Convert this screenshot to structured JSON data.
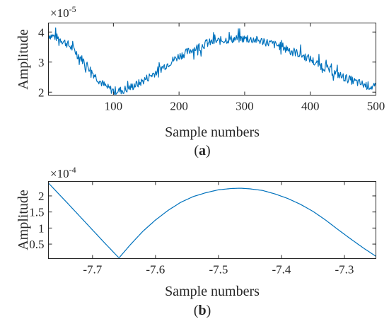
{
  "chart_data": [
    {
      "type": "line",
      "panel_label": "a",
      "xlabel": "Sample numbers",
      "ylabel": "Amplitude",
      "exponent_base": "×10",
      "exponent_power": "-5",
      "xlim": [
        1,
        500
      ],
      "ylim": [
        1.9,
        4.3
      ],
      "xticks": [
        100,
        200,
        300,
        400,
        500
      ],
      "xtick_labels": [
        "100",
        "200",
        "300",
        "400",
        "500"
      ],
      "yticks": [
        2,
        3,
        4
      ],
      "ytick_labels": [
        "2",
        "3",
        "4"
      ],
      "grid": false,
      "color": "#0072BD",
      "series": [
        {
          "x": [
            1,
            10,
            20,
            30,
            40,
            50,
            60,
            70,
            80,
            90,
            100,
            110,
            120,
            130,
            140,
            150,
            160,
            170,
            180,
            190,
            200,
            210,
            220,
            230,
            240,
            250,
            260,
            270,
            280,
            290,
            300,
            310,
            320,
            330,
            340,
            350,
            360,
            370,
            380,
            390,
            400,
            410,
            420,
            430,
            440,
            450,
            460,
            470,
            480,
            490,
            500
          ],
          "values": [
            3.9,
            3.85,
            3.75,
            3.6,
            3.4,
            3.15,
            2.9,
            2.6,
            2.35,
            2.15,
            2.05,
            2.05,
            2.1,
            2.2,
            2.3,
            2.45,
            2.6,
            2.75,
            2.9,
            3.05,
            3.2,
            3.3,
            3.42,
            3.5,
            3.6,
            3.66,
            3.7,
            3.74,
            3.76,
            3.77,
            3.78,
            3.75,
            3.72,
            3.68,
            3.62,
            3.55,
            3.5,
            3.4,
            3.3,
            3.2,
            3.1,
            2.95,
            2.85,
            2.72,
            2.62,
            2.5,
            2.42,
            2.33,
            2.26,
            2.2,
            2.15
          ]
        }
      ]
    },
    {
      "type": "line",
      "panel_label": "b",
      "xlabel": "Sample numbers",
      "ylabel": "Amplitude",
      "exponent_base": "×10",
      "exponent_power": "-4",
      "xlim": [
        -7.77,
        -7.25
      ],
      "ylim": [
        0.05,
        2.45
      ],
      "xticks": [
        -7.7,
        -7.6,
        -7.5,
        -7.4,
        -7.3
      ],
      "xtick_labels": [
        "-7.7",
        "-7.6",
        "-7.5",
        "-7.4",
        "-7.3"
      ],
      "yticks": [
        0.5,
        1,
        1.5,
        2
      ],
      "ytick_labels": [
        "0.5",
        "1",
        "1.5",
        "2"
      ],
      "grid": false,
      "color": "#0072BD",
      "series": [
        {
          "x": [
            -7.77,
            -7.74,
            -7.71,
            -7.68,
            -7.658,
            -7.64,
            -7.62,
            -7.6,
            -7.58,
            -7.56,
            -7.54,
            -7.52,
            -7.5,
            -7.48,
            -7.465,
            -7.45,
            -7.43,
            -7.41,
            -7.39,
            -7.37,
            -7.35,
            -7.33,
            -7.31,
            -7.29,
            -7.27,
            -7.25
          ],
          "values": [
            2.4,
            1.78,
            1.15,
            0.52,
            0.07,
            0.48,
            0.9,
            1.25,
            1.55,
            1.8,
            1.98,
            2.1,
            2.19,
            2.23,
            2.24,
            2.22,
            2.17,
            2.06,
            1.92,
            1.74,
            1.52,
            1.25,
            0.95,
            0.66,
            0.38,
            0.12
          ]
        }
      ]
    }
  ]
}
